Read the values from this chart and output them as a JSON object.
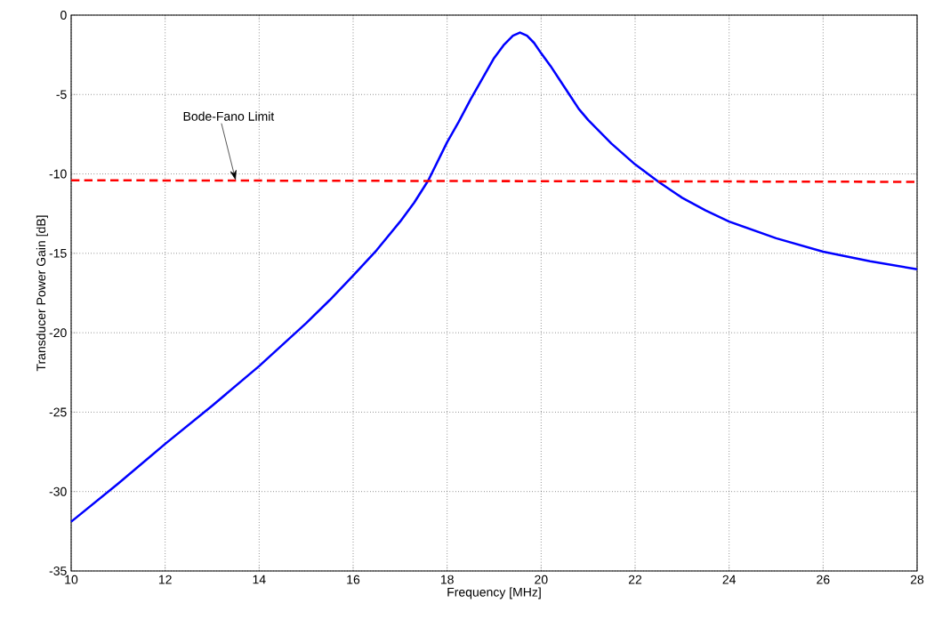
{
  "chart_data": {
    "type": "line",
    "xlabel": "Frequency [MHz]",
    "ylabel": "Transducer Power Gain [dB]",
    "xlim": [
      10,
      28
    ],
    "ylim": [
      -35,
      0
    ],
    "xticks": [
      10,
      12,
      14,
      16,
      18,
      20,
      22,
      24,
      26,
      28
    ],
    "yticks": [
      -35,
      -30,
      -25,
      -20,
      -15,
      -10,
      -5,
      0
    ],
    "grid": true,
    "marker": "none",
    "series": [
      {
        "color": "#0000ff",
        "line_style": "solid",
        "x": [
          10,
          11,
          12,
          13,
          14,
          15,
          15.5,
          16,
          16.5,
          17,
          17.3,
          17.6,
          18,
          18.25,
          18.5,
          18.75,
          19,
          19.2,
          19.4,
          19.55,
          19.7,
          19.85,
          20,
          20.2,
          20.4,
          20.6,
          20.8,
          21,
          21.5,
          22,
          22.5,
          23,
          23.5,
          24,
          25,
          26,
          27,
          28
        ],
        "values": [
          -31.9,
          -29.5,
          -27.0,
          -24.6,
          -22.1,
          -19.4,
          -17.95,
          -16.4,
          -14.8,
          -13.0,
          -11.8,
          -10.4,
          -8.0,
          -6.7,
          -5.3,
          -4.0,
          -2.7,
          -1.9,
          -1.3,
          -1.1,
          -1.3,
          -1.75,
          -2.4,
          -3.2,
          -4.1,
          -5.0,
          -5.9,
          -6.6,
          -8.1,
          -9.4,
          -10.5,
          -11.5,
          -12.3,
          -13.0,
          -14.05,
          -14.9,
          -15.5,
          -16.0
        ]
      },
      {
        "color": "#ff0000",
        "line_style": "dashed",
        "x": [
          10,
          28
        ],
        "values": [
          -10.4,
          -10.5
        ]
      }
    ],
    "annotations": [
      {
        "text": "Bode-Fano Limit",
        "x": 13.5,
        "y": -10.4
      }
    ]
  }
}
